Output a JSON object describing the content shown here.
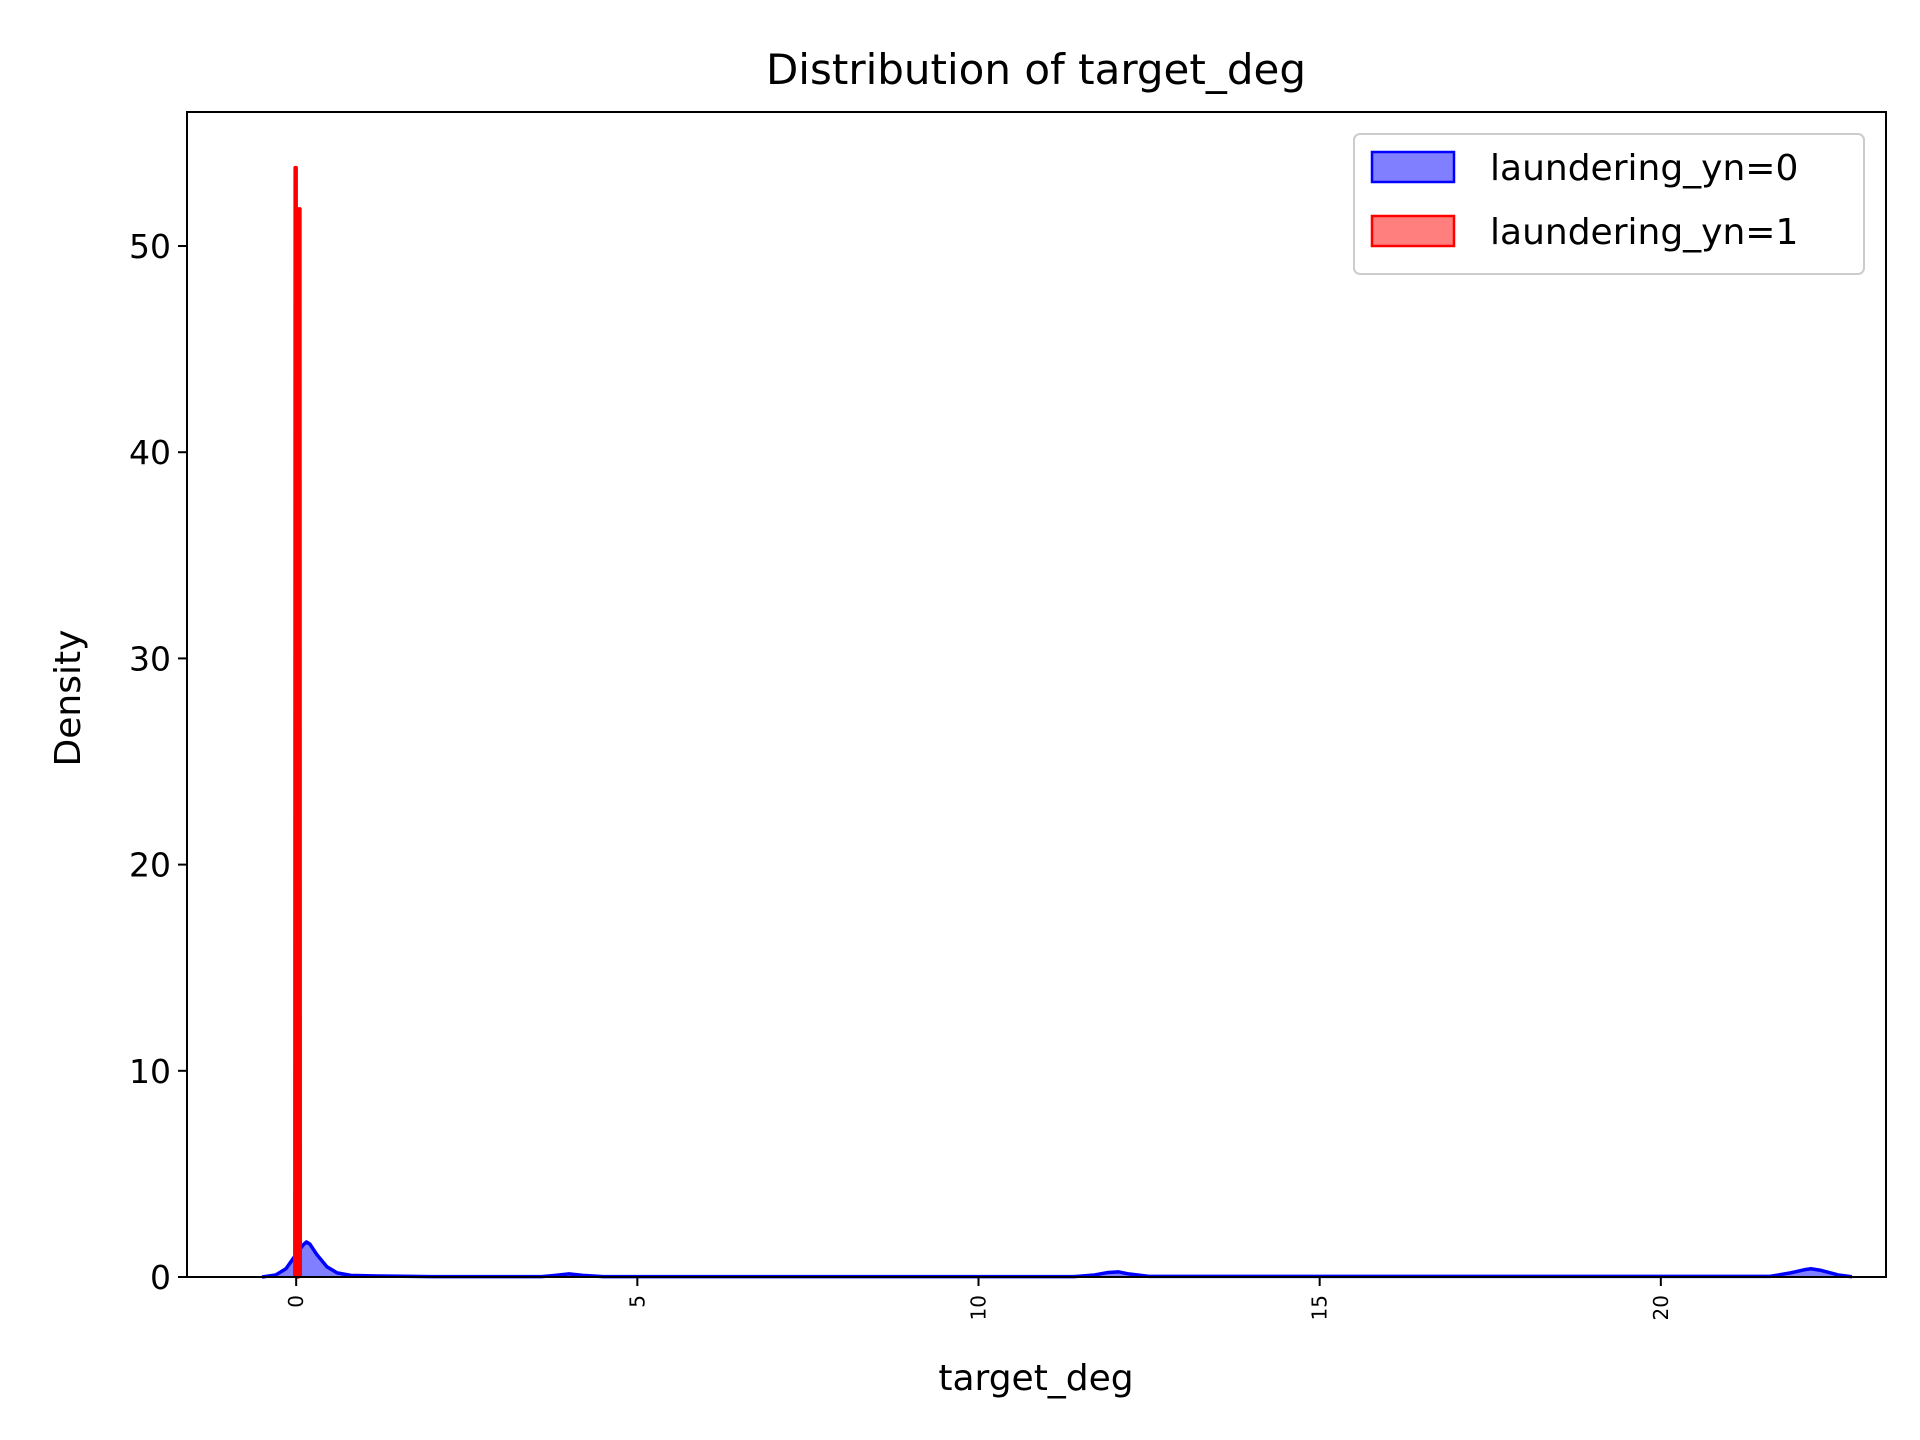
{
  "chart_data": {
    "type": "area",
    "title": "Distribution of target_deg",
    "xlabel": "target_deg",
    "ylabel": "Density",
    "xlim": [
      -1.6,
      23.3
    ],
    "ylim": [
      0,
      56.5
    ],
    "xticks": [
      0,
      5,
      10,
      15,
      20
    ],
    "yticks": [
      0,
      10,
      20,
      30,
      40,
      50
    ],
    "xtick_rotation": 90,
    "grid": false,
    "legend_position": "top-right",
    "series": [
      {
        "name": "laundering_yn=0",
        "color": "#0000ff",
        "fill_alpha": 0.5,
        "points": [
          [
            -0.5,
            0
          ],
          [
            -0.3,
            0.1
          ],
          [
            -0.15,
            0.4
          ],
          [
            0,
            1.1
          ],
          [
            0.1,
            1.55
          ],
          [
            0.15,
            1.7
          ],
          [
            0.2,
            1.6
          ],
          [
            0.3,
            1.1
          ],
          [
            0.45,
            0.5
          ],
          [
            0.6,
            0.2
          ],
          [
            0.8,
            0.08
          ],
          [
            1.2,
            0.05
          ],
          [
            2.0,
            0.02
          ],
          [
            3.6,
            0.02
          ],
          [
            3.8,
            0.08
          ],
          [
            4.0,
            0.15
          ],
          [
            4.2,
            0.08
          ],
          [
            4.5,
            0.02
          ],
          [
            11.4,
            0.02
          ],
          [
            11.7,
            0.1
          ],
          [
            11.9,
            0.22
          ],
          [
            12.05,
            0.25
          ],
          [
            12.2,
            0.15
          ],
          [
            12.5,
            0.03
          ],
          [
            21.6,
            0.03
          ],
          [
            21.9,
            0.2
          ],
          [
            22.1,
            0.35
          ],
          [
            22.2,
            0.4
          ],
          [
            22.35,
            0.32
          ],
          [
            22.6,
            0.1
          ],
          [
            22.8,
            0.01
          ]
        ]
      },
      {
        "name": "laundering_yn=1",
        "color": "#ff0000",
        "fill_alpha": 0.5,
        "points": [
          [
            -0.02,
            0
          ],
          [
            -0.015,
            53.8
          ],
          [
            0.0,
            53.8
          ],
          [
            0.005,
            0
          ],
          [
            0.03,
            0
          ],
          [
            0.035,
            51.8
          ],
          [
            0.055,
            51.8
          ],
          [
            0.06,
            0
          ]
        ]
      }
    ]
  }
}
